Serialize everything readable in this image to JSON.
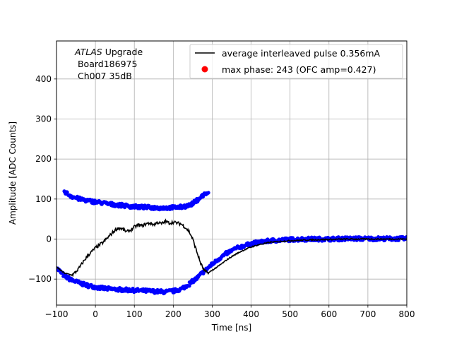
{
  "chart_data": {
    "type": "scatter",
    "xlabel": "Time [ns]",
    "ylabel": "Amplitude [ADC Counts]",
    "xlim": [
      -100,
      800
    ],
    "ylim": [
      -165,
      495
    ],
    "xticks": [
      -100,
      0,
      100,
      200,
      300,
      400,
      500,
      600,
      700,
      800
    ],
    "yticks": [
      -100,
      0,
      100,
      200,
      300,
      400
    ],
    "grid": true,
    "legend_position": "top-right",
    "annotation": {
      "experiment": "ATLAS",
      "experiment_suffix": " Upgrade",
      "board": " Board186975",
      "channel": " Ch007 35dB"
    },
    "series": [
      {
        "name": "average interleaved pulse 0.356mA",
        "kind": "line",
        "color": "#000000",
        "x": [
          -100,
          -80,
          -60,
          -50,
          -40,
          -30,
          -20,
          -10,
          0,
          10,
          20,
          30,
          40,
          50,
          60,
          70,
          80,
          90,
          100,
          110,
          120,
          130,
          140,
          150,
          160,
          170,
          180,
          190,
          200,
          210,
          220,
          230,
          240,
          250,
          260,
          270,
          280,
          290,
          300,
          320,
          340,
          360,
          380,
          400,
          420,
          450,
          500,
          550,
          600,
          650,
          700,
          750,
          800
        ],
        "y": [
          -70,
          -85,
          -90,
          -82,
          -70,
          -55,
          -42,
          -32,
          -22,
          -15,
          -8,
          2,
          12,
          22,
          28,
          25,
          18,
          22,
          30,
          35,
          33,
          38,
          40,
          36,
          42,
          38,
          44,
          40,
          42,
          40,
          38,
          30,
          20,
          0,
          -30,
          -60,
          -80,
          -85,
          -78,
          -65,
          -50,
          -38,
          -28,
          -20,
          -14,
          -8,
          -4,
          -2,
          -1,
          0,
          0,
          0,
          0
        ]
      },
      {
        "name": "max phase: 243 (OFC amp=0.427)",
        "kind": "scatter",
        "color": "#0000ff",
        "branches": [
          {
            "x": [
              -100,
              -80,
              -60,
              -40,
              -20,
              0,
              20,
              40,
              60,
              80,
              100,
              120,
              140,
              160,
              180,
              200,
              220,
              240,
              260,
              280,
              300,
              320,
              340,
              360,
              380,
              400,
              420,
              450,
              500,
              550,
              600,
              650,
              700,
              750,
              800
            ],
            "y": [
              -72,
              -92,
              -103,
              -110,
              -116,
              -120,
              -123,
              -125,
              -126,
              -127,
              -128,
              -129,
              -130,
              -131,
              -132,
              -130,
              -125,
              -113,
              -98,
              -80,
              -63,
              -47,
              -34,
              -24,
              -17,
              -12,
              -8,
              -4,
              -1,
              0,
              0,
              1,
              1,
              1,
              1
            ]
          },
          {
            "x": [
              -80,
              -70,
              -60,
              -40,
              -20,
              0,
              20,
              40,
              60,
              80,
              100,
              120,
              140,
              160,
              180,
              200,
              220,
              240,
              250,
              260,
              270,
              280,
              290
            ],
            "y": [
              120,
              112,
              106,
              100,
              96,
              93,
              90,
              87,
              85,
              83,
              81,
              80,
              79,
              78,
              78,
              79,
              80,
              84,
              89,
              96,
              104,
              112,
              116
            ]
          }
        ]
      }
    ]
  }
}
